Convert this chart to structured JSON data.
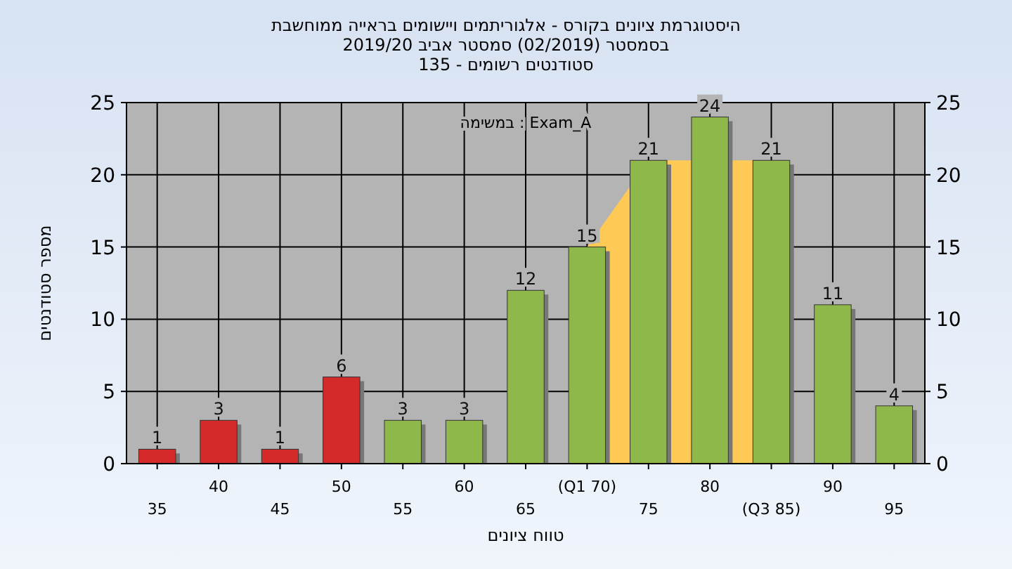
{
  "chart_data": {
    "type": "bar",
    "title": "היסטוגרמת ציונים בקורס - אלגוריתמים ויישומים בראייה ממוחשבת",
    "subtitle": "בסמסטר  (02/2019)  סמסטר אביב 2019/20\nסטודנטים רשומים - 135",
    "xlabel": "טווח ציונים",
    "ylabel": "מספר סטודנטים",
    "annotations": [
      "במשימה : Exam_A"
    ],
    "categories": [
      "35",
      "40",
      "45",
      "50",
      "55",
      "60",
      "65",
      "(Q1 70)",
      "75",
      "80",
      "(Q3 85)",
      "90",
      "95"
    ],
    "series": [
      {
        "type": "area",
        "color": "#ffc955",
        "values": [
          null,
          null,
          null,
          null,
          null,
          null,
          null,
          15,
          21,
          null,
          21,
          null,
          null
        ]
      },
      {
        "colors": [
          "#d42a2a",
          "#d42a2a",
          "#d42a2a",
          "#d42a2a",
          "#8fb84a",
          "#8fb84a",
          "#8fb84a",
          "#8fb84a",
          "#8fb84a",
          "#8fb84a",
          "#8fb84a",
          "#8fb84a",
          "#8fb84a"
        ],
        "values": [
          1,
          3,
          1,
          6,
          3,
          3,
          12,
          15,
          21,
          24,
          21,
          11,
          4
        ],
        "value_labels": [
          "1",
          "3",
          "1",
          "6",
          "3",
          "3",
          "12",
          "15",
          "21",
          "24",
          "21",
          "11",
          "4"
        ]
      }
    ],
    "ylim": [
      0,
      25
    ],
    "yticks": [
      0,
      5,
      10,
      15,
      20,
      25
    ],
    "y2lim": [
      0,
      25
    ],
    "y2ticks": [
      0,
      5,
      10,
      15,
      20,
      25
    ],
    "grid": true
  }
}
